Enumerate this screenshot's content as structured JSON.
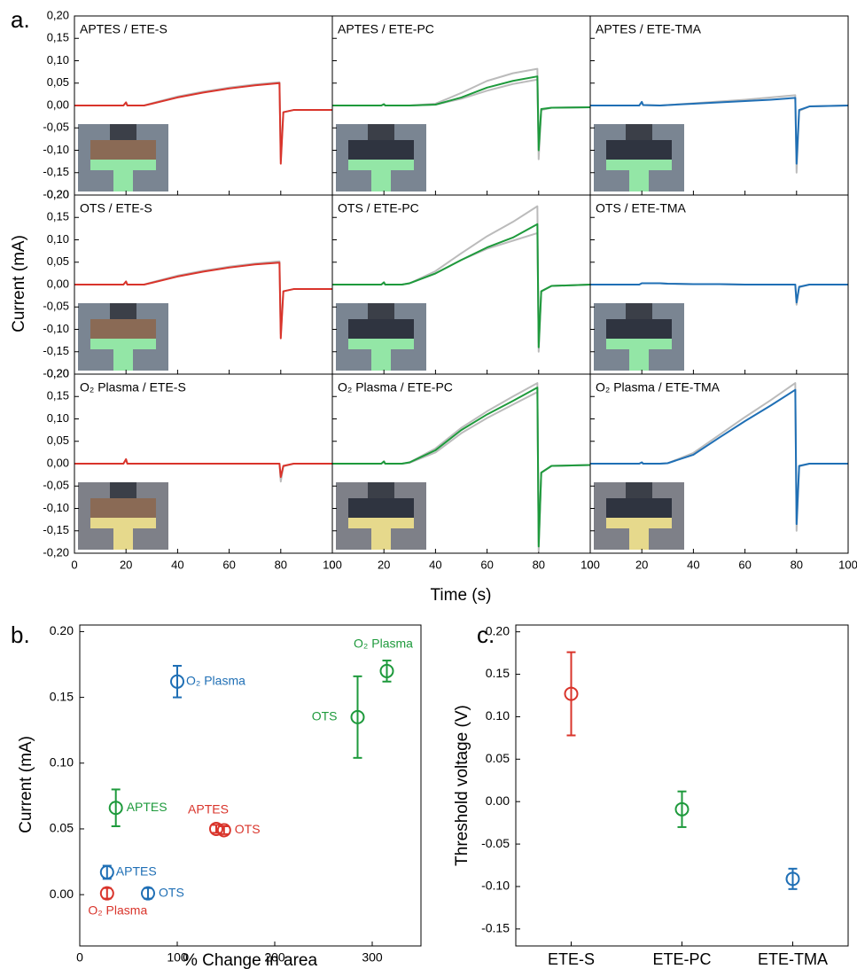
{
  "chart_data": [
    {
      "type": "line",
      "panel_label": "a.",
      "xlabel": "Time (s)",
      "ylabel": "Current (mA)",
      "xlim": [
        0,
        100
      ],
      "xticks": [
        0,
        20,
        40,
        60,
        80,
        100
      ],
      "ylim": [
        -0.2,
        0.2
      ],
      "yticks": [
        {
          "value": 0.2,
          "label": "0,20"
        },
        {
          "value": 0.15,
          "label": "0,15"
        },
        {
          "value": 0.1,
          "label": "0,10"
        },
        {
          "value": 0.05,
          "label": "0,05"
        },
        {
          "value": 0,
          "label": "0,00"
        },
        {
          "value": -0.05,
          "label": "-0,05"
        },
        {
          "value": -0.1,
          "label": "-0,10"
        },
        {
          "value": -0.15,
          "label": "-0,15"
        },
        {
          "value": -0.2,
          "label": "-0,20"
        }
      ],
      "x": [
        0,
        19,
        20,
        20.5,
        27,
        30,
        40,
        50,
        60,
        70,
        79.5,
        80,
        81,
        85,
        100
      ],
      "panels": [
        {
          "title": "APTES / ETE-S",
          "series": [
            {
              "color": "#bbbbbb",
              "values": [
                0,
                0,
                0.007,
                0,
                0,
                0.005,
                0.02,
                0.031,
                0.04,
                0.047,
                0.052,
                -0.12,
                -0.015,
                -0.01,
                -0.01
              ]
            },
            {
              "color": "#d9342b",
              "values": [
                0,
                0,
                0.007,
                0,
                0,
                0.004,
                0.018,
                0.029,
                0.038,
                0.045,
                0.05,
                -0.13,
                -0.015,
                -0.01,
                -0.01
              ]
            }
          ]
        },
        {
          "title": "APTES / ETE-PC",
          "series": [
            {
              "color": "#bbbbbb",
              "values": [
                0,
                0,
                0.003,
                0,
                0,
                0,
                0.004,
                0.028,
                0.055,
                0.072,
                0.082,
                -0.1,
                -0.01,
                -0.005,
                -0.004
              ]
            },
            {
              "color": "#bbbbbb",
              "values": [
                0,
                0,
                0.003,
                0,
                0,
                0,
                0.002,
                0.015,
                0.033,
                0.048,
                0.058,
                -0.12,
                -0.01,
                -0.005,
                -0.004
              ]
            },
            {
              "color": "#1e9a3c",
              "values": [
                0,
                0,
                0.003,
                0,
                0,
                0,
                0.002,
                0.018,
                0.04,
                0.055,
                0.065,
                -0.1,
                -0.008,
                -0.005,
                -0.004
              ]
            }
          ]
        },
        {
          "title": "APTES / ETE-TMA",
          "series": [
            {
              "color": "#bbbbbb",
              "values": [
                0,
                0,
                0.008,
                0.001,
                0,
                0.001,
                0.005,
                0.009,
                0.013,
                0.018,
                0.023,
                -0.15,
                -0.012,
                -0.002,
                0
              ]
            },
            {
              "color": "#1f6fb5",
              "values": [
                0,
                0,
                0.008,
                0.001,
                0,
                0.001,
                0.004,
                0.007,
                0.01,
                0.013,
                0.017,
                -0.13,
                -0.01,
                -0.002,
                0
              ]
            }
          ]
        },
        {
          "title": "OTS / ETE-S",
          "series": [
            {
              "color": "#bbbbbb",
              "values": [
                0,
                0,
                0.007,
                0,
                0,
                0.005,
                0.02,
                0.031,
                0.04,
                0.047,
                0.052,
                -0.11,
                -0.015,
                -0.01,
                -0.01
              ]
            },
            {
              "color": "#d9342b",
              "values": [
                0,
                0,
                0.007,
                0,
                0,
                0.004,
                0.018,
                0.029,
                0.038,
                0.045,
                0.049,
                -0.12,
                -0.015,
                -0.01,
                -0.01
              ]
            }
          ]
        },
        {
          "title": "OTS / ETE-PC",
          "series": [
            {
              "color": "#bbbbbb",
              "values": [
                0,
                0,
                0.005,
                0,
                0,
                0.003,
                0.03,
                0.07,
                0.108,
                0.14,
                0.175,
                -0.15,
                -0.015,
                -0.003,
                0
              ]
            },
            {
              "color": "#bbbbbb",
              "values": [
                0,
                0,
                0.005,
                0,
                0,
                0.003,
                0.025,
                0.055,
                0.08,
                0.098,
                0.115,
                -0.13,
                -0.015,
                -0.003,
                0
              ]
            },
            {
              "color": "#1e9a3c",
              "values": [
                0,
                0,
                0.005,
                0,
                0,
                0.003,
                0.025,
                0.055,
                0.083,
                0.105,
                0.135,
                -0.14,
                -0.015,
                -0.003,
                0
              ]
            }
          ]
        },
        {
          "title": "OTS / ETE-TMA",
          "series": [
            {
              "color": "#bbbbbb",
              "values": [
                0,
                0,
                0.003,
                0.003,
                0.003,
                0.002,
                0.001,
                0.001,
                0,
                0,
                0,
                -0.045,
                -0.006,
                0,
                0
              ]
            },
            {
              "color": "#1f6fb5",
              "values": [
                0,
                0,
                0.003,
                0.003,
                0.003,
                0.002,
                0.001,
                0.001,
                0,
                0,
                0,
                -0.04,
                -0.005,
                0,
                0
              ]
            }
          ]
        },
        {
          "title": "O₂ Plasma / ETE-S",
          "series": [
            {
              "color": "#bbbbbb",
              "values": [
                0,
                0,
                0.01,
                0,
                0,
                0,
                0,
                0,
                0,
                0,
                0,
                -0.04,
                -0.006,
                0,
                0
              ]
            },
            {
              "color": "#d9342b",
              "values": [
                0,
                0,
                0.01,
                0,
                0,
                0,
                0,
                0,
                0,
                0,
                0,
                -0.03,
                -0.005,
                0,
                0
              ]
            }
          ]
        },
        {
          "title": "O₂ Plasma / ETE-PC",
          "series": [
            {
              "color": "#bbbbbb",
              "values": [
                0,
                0,
                0.005,
                0,
                0,
                0.003,
                0.034,
                0.08,
                0.117,
                0.15,
                0.18,
                -0.195,
                -0.02,
                -0.005,
                -0.003
              ]
            },
            {
              "color": "#bbbbbb",
              "values": [
                0,
                0,
                0.005,
                0,
                0,
                0.002,
                0.025,
                0.068,
                0.102,
                0.132,
                0.16,
                -0.175,
                -0.02,
                -0.005,
                -0.003
              ]
            },
            {
              "color": "#1e9a3c",
              "values": [
                0,
                0,
                0.005,
                0,
                0,
                0.003,
                0.03,
                0.075,
                0.11,
                0.14,
                0.17,
                -0.185,
                -0.02,
                -0.005,
                -0.003
              ]
            }
          ]
        },
        {
          "title": "O₂ Plasma / ETE-TMA",
          "series": [
            {
              "color": "#bbbbbb",
              "values": [
                0,
                0,
                0.003,
                0,
                0,
                0.001,
                0.024,
                0.064,
                0.104,
                0.142,
                0.18,
                -0.15,
                -0.006,
                0,
                0
              ]
            },
            {
              "color": "#1f6fb5",
              "values": [
                0,
                0,
                0.003,
                0,
                0,
                0.001,
                0.02,
                0.058,
                0.095,
                0.13,
                0.165,
                -0.135,
                -0.005,
                0,
                0
              ]
            }
          ]
        }
      ]
    },
    {
      "type": "scatter",
      "panel_label": "b.",
      "xlabel": "% Change in area",
      "ylabel": "Current (mA)",
      "xlim": [
        0,
        350
      ],
      "xticks": [
        0,
        100,
        200,
        300
      ],
      "ylim": [
        -0.039,
        0.205
      ],
      "yticks": [
        {
          "value": 0,
          "label": "0.00"
        },
        {
          "value": 0.05,
          "label": "0.05"
        },
        {
          "value": 0.1,
          "label": "0.10"
        },
        {
          "value": 0.15,
          "label": "0.15"
        },
        {
          "value": 0.2,
          "label": "0.20"
        }
      ],
      "points": [
        {
          "label": "APTES",
          "color": "#1f6fb5",
          "x": 28,
          "y": 0.017,
          "err": 0.005
        },
        {
          "label": "OTS",
          "color": "#1f6fb5",
          "x": 70,
          "y": 0.001,
          "err": 0.004
        },
        {
          "label": "O₂ Plasma",
          "color": "#1f6fb5",
          "x": 100,
          "y": 0.162,
          "err": 0.012
        },
        {
          "label": "APTES",
          "color": "#1e9a3c",
          "x": 37,
          "y": 0.066,
          "err": 0.014
        },
        {
          "label": "OTS",
          "color": "#1e9a3c",
          "x": 285,
          "y": 0.135,
          "err": 0.031
        },
        {
          "label": "O₂ Plasma",
          "color": "#1e9a3c",
          "x": 315,
          "y": 0.17,
          "err": 0.008
        },
        {
          "label": "APTES",
          "color": "#d9342b",
          "x": 140,
          "y": 0.05,
          "err": 0.003
        },
        {
          "label": "OTS",
          "color": "#d9342b",
          "x": 148,
          "y": 0.049,
          "err": 0.003
        },
        {
          "label": "O₂ Plasma",
          "color": "#d9342b",
          "x": 28,
          "y": 0.001,
          "err": 0.004
        }
      ]
    },
    {
      "type": "errorbar",
      "panel_label": "c.",
      "ylabel": "Threshold voltage (V)",
      "categories": [
        "ETE-S",
        "ETE-PC",
        "ETE-TMA"
      ],
      "values": [
        0.127,
        -0.009,
        -0.091
      ],
      "errors": [
        0.049,
        0.021,
        0.012
      ],
      "colors": [
        "#d9342b",
        "#1e9a3c",
        "#1f6fb5"
      ],
      "ylim": [
        -0.17,
        0.208
      ],
      "yticks": [
        {
          "value": 0.2,
          "label": "0.20"
        },
        {
          "value": 0.15,
          "label": "0.15"
        },
        {
          "value": 0.1,
          "label": "0.10"
        },
        {
          "value": 0.05,
          "label": "0.05"
        },
        {
          "value": 0,
          "label": "0.00"
        },
        {
          "value": -0.05,
          "label": "-0.05"
        },
        {
          "value": -0.1,
          "label": "-0.10"
        },
        {
          "value": -0.15,
          "label": "-0.15"
        }
      ]
    }
  ]
}
